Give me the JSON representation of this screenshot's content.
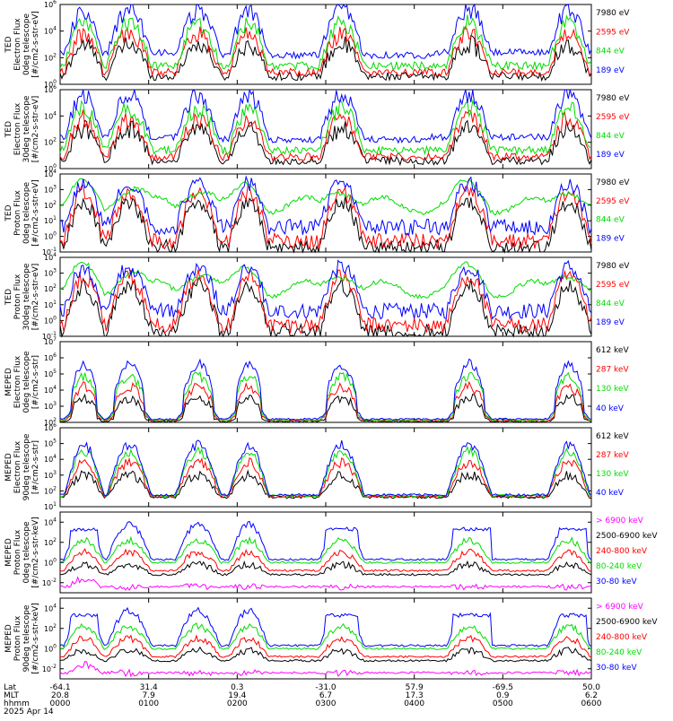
{
  "chart_data": [
    {
      "type": "line",
      "ylabel": [
        "TED",
        "Electron Flux",
        "0deg telescope",
        "[#/cm2-s-str-eV]"
      ],
      "yscale": "log",
      "ylim_exp": [
        0,
        6
      ],
      "yticks_exp": [
        0,
        2,
        4,
        6
      ],
      "kind": "ted_e",
      "series": [
        {
          "name": "7980 eV",
          "color": "#000000"
        },
        {
          "name": "2595 eV",
          "color": "#ff0000"
        },
        {
          "name": "844 eV",
          "color": "#00dd00"
        },
        {
          "name": "189 eV",
          "color": "#0000ff"
        }
      ]
    },
    {
      "type": "line",
      "ylabel": [
        "TED",
        "Electron Flux",
        "30deg telescope",
        "[#/cm2-s-str-eV]"
      ],
      "yscale": "log",
      "ylim_exp": [
        0,
        6
      ],
      "yticks_exp": [
        0,
        2,
        4,
        6
      ],
      "kind": "ted_e2",
      "series": [
        {
          "name": "7980 eV",
          "color": "#000000"
        },
        {
          "name": "2595 eV",
          "color": "#ff0000"
        },
        {
          "name": "844 eV",
          "color": "#00dd00"
        },
        {
          "name": "189 eV",
          "color": "#0000ff"
        }
      ]
    },
    {
      "type": "line",
      "ylabel": [
        "TED",
        "Proton Flux",
        "0deg telescope",
        "[#/cm2-s-str-eV]"
      ],
      "yscale": "log",
      "ylim_exp": [
        -1,
        4
      ],
      "yticks_exp": [
        -1,
        0,
        1,
        2,
        3,
        4
      ],
      "kind": "ted_p",
      "series": [
        {
          "name": "7980 eV",
          "color": "#000000"
        },
        {
          "name": "2595 eV",
          "color": "#ff0000"
        },
        {
          "name": "844 eV",
          "color": "#00dd00"
        },
        {
          "name": "189 eV",
          "color": "#0000ff"
        }
      ]
    },
    {
      "type": "line",
      "ylabel": [
        "TED",
        "Proton Flux",
        "30deg telescope",
        "[#/cm2-s-str-eV]"
      ],
      "yscale": "log",
      "ylim_exp": [
        -1,
        4
      ],
      "yticks_exp": [
        -1,
        0,
        1,
        2,
        3,
        4
      ],
      "kind": "ted_p2",
      "series": [
        {
          "name": "7980 eV",
          "color": "#000000"
        },
        {
          "name": "2595 eV",
          "color": "#ff0000"
        },
        {
          "name": "844 eV",
          "color": "#00dd00"
        },
        {
          "name": "189 eV",
          "color": "#0000ff"
        }
      ]
    },
    {
      "type": "line",
      "ylabel": [
        "MEPED",
        "Electron Flux",
        "0deg telescope",
        "[#/cm2-s-str]"
      ],
      "yscale": "log",
      "ylim_exp": [
        2,
        7
      ],
      "yticks_exp": [
        2,
        3,
        4,
        5,
        6,
        7
      ],
      "kind": "mep_e",
      "series": [
        {
          "name": "612 keV",
          "color": "#000000"
        },
        {
          "name": "287 keV",
          "color": "#ff0000"
        },
        {
          "name": "130 keV",
          "color": "#00dd00"
        },
        {
          "name": "40 keV",
          "color": "#0000ff"
        }
      ]
    },
    {
      "type": "line",
      "ylabel": [
        "MEPED",
        "Electron Flux",
        "90deg telescope",
        "[#/cm2-s-str]"
      ],
      "yscale": "log",
      "ylim_exp": [
        1,
        6
      ],
      "yticks_exp": [
        1,
        2,
        3,
        4,
        5,
        6
      ],
      "kind": "mep_e2",
      "series": [
        {
          "name": "612 keV",
          "color": "#000000"
        },
        {
          "name": "287 keV",
          "color": "#ff0000"
        },
        {
          "name": "130 keV",
          "color": "#00dd00"
        },
        {
          "name": "40 keV",
          "color": "#0000ff"
        }
      ]
    },
    {
      "type": "line",
      "ylabel": [
        "MEPED",
        "Proton Flux",
        "0deg telescope",
        "[#/cm2-s-str-keV]"
      ],
      "yscale": "log",
      "ylim_exp": [
        -3,
        5
      ],
      "yticks_exp": [
        -2,
        0,
        2,
        4
      ],
      "kind": "mep_p",
      "series": [
        {
          "name": "> 6900 keV",
          "color": "#ff00ff"
        },
        {
          "name": "2500-6900 keV",
          "color": "#000000"
        },
        {
          "name": "240-800 keV",
          "color": "#ff0000"
        },
        {
          "name": "80-240 keV",
          "color": "#00dd00"
        },
        {
          "name": "30-80 keV",
          "color": "#0000ff"
        }
      ]
    },
    {
      "type": "line",
      "ylabel": [
        "MEPED",
        "Proton Flux",
        "90deg telescope",
        "[#/cm2-s-str-keV]"
      ],
      "yscale": "log",
      "ylim_exp": [
        -3,
        5
      ],
      "yticks_exp": [
        -2,
        0,
        2,
        4
      ],
      "kind": "mep_p2",
      "series": [
        {
          "name": "> 6900 keV",
          "color": "#ff00ff"
        },
        {
          "name": "2500-6900 keV",
          "color": "#000000"
        },
        {
          "name": "240-800 keV",
          "color": "#ff0000"
        },
        {
          "name": "80-240 keV",
          "color": "#00dd00"
        },
        {
          "name": "30-80 keV",
          "color": "#0000ff"
        }
      ]
    }
  ],
  "x_axis": {
    "row_labels": [
      "Lat",
      "MLT",
      "hhmm"
    ],
    "lat": [
      "-64.1",
      "31.4",
      "0.3",
      "-31.0",
      "57.9",
      "-69.5",
      "50.0"
    ],
    "mlt": [
      "20.8",
      "7.9",
      "19.4",
      "6.7",
      "17.3",
      "0.9",
      "6.2"
    ],
    "hhmm": [
      "0000",
      "0100",
      "0200",
      "0300",
      "0400",
      "0500",
      "0600"
    ],
    "date": "2025 Apr 14"
  }
}
